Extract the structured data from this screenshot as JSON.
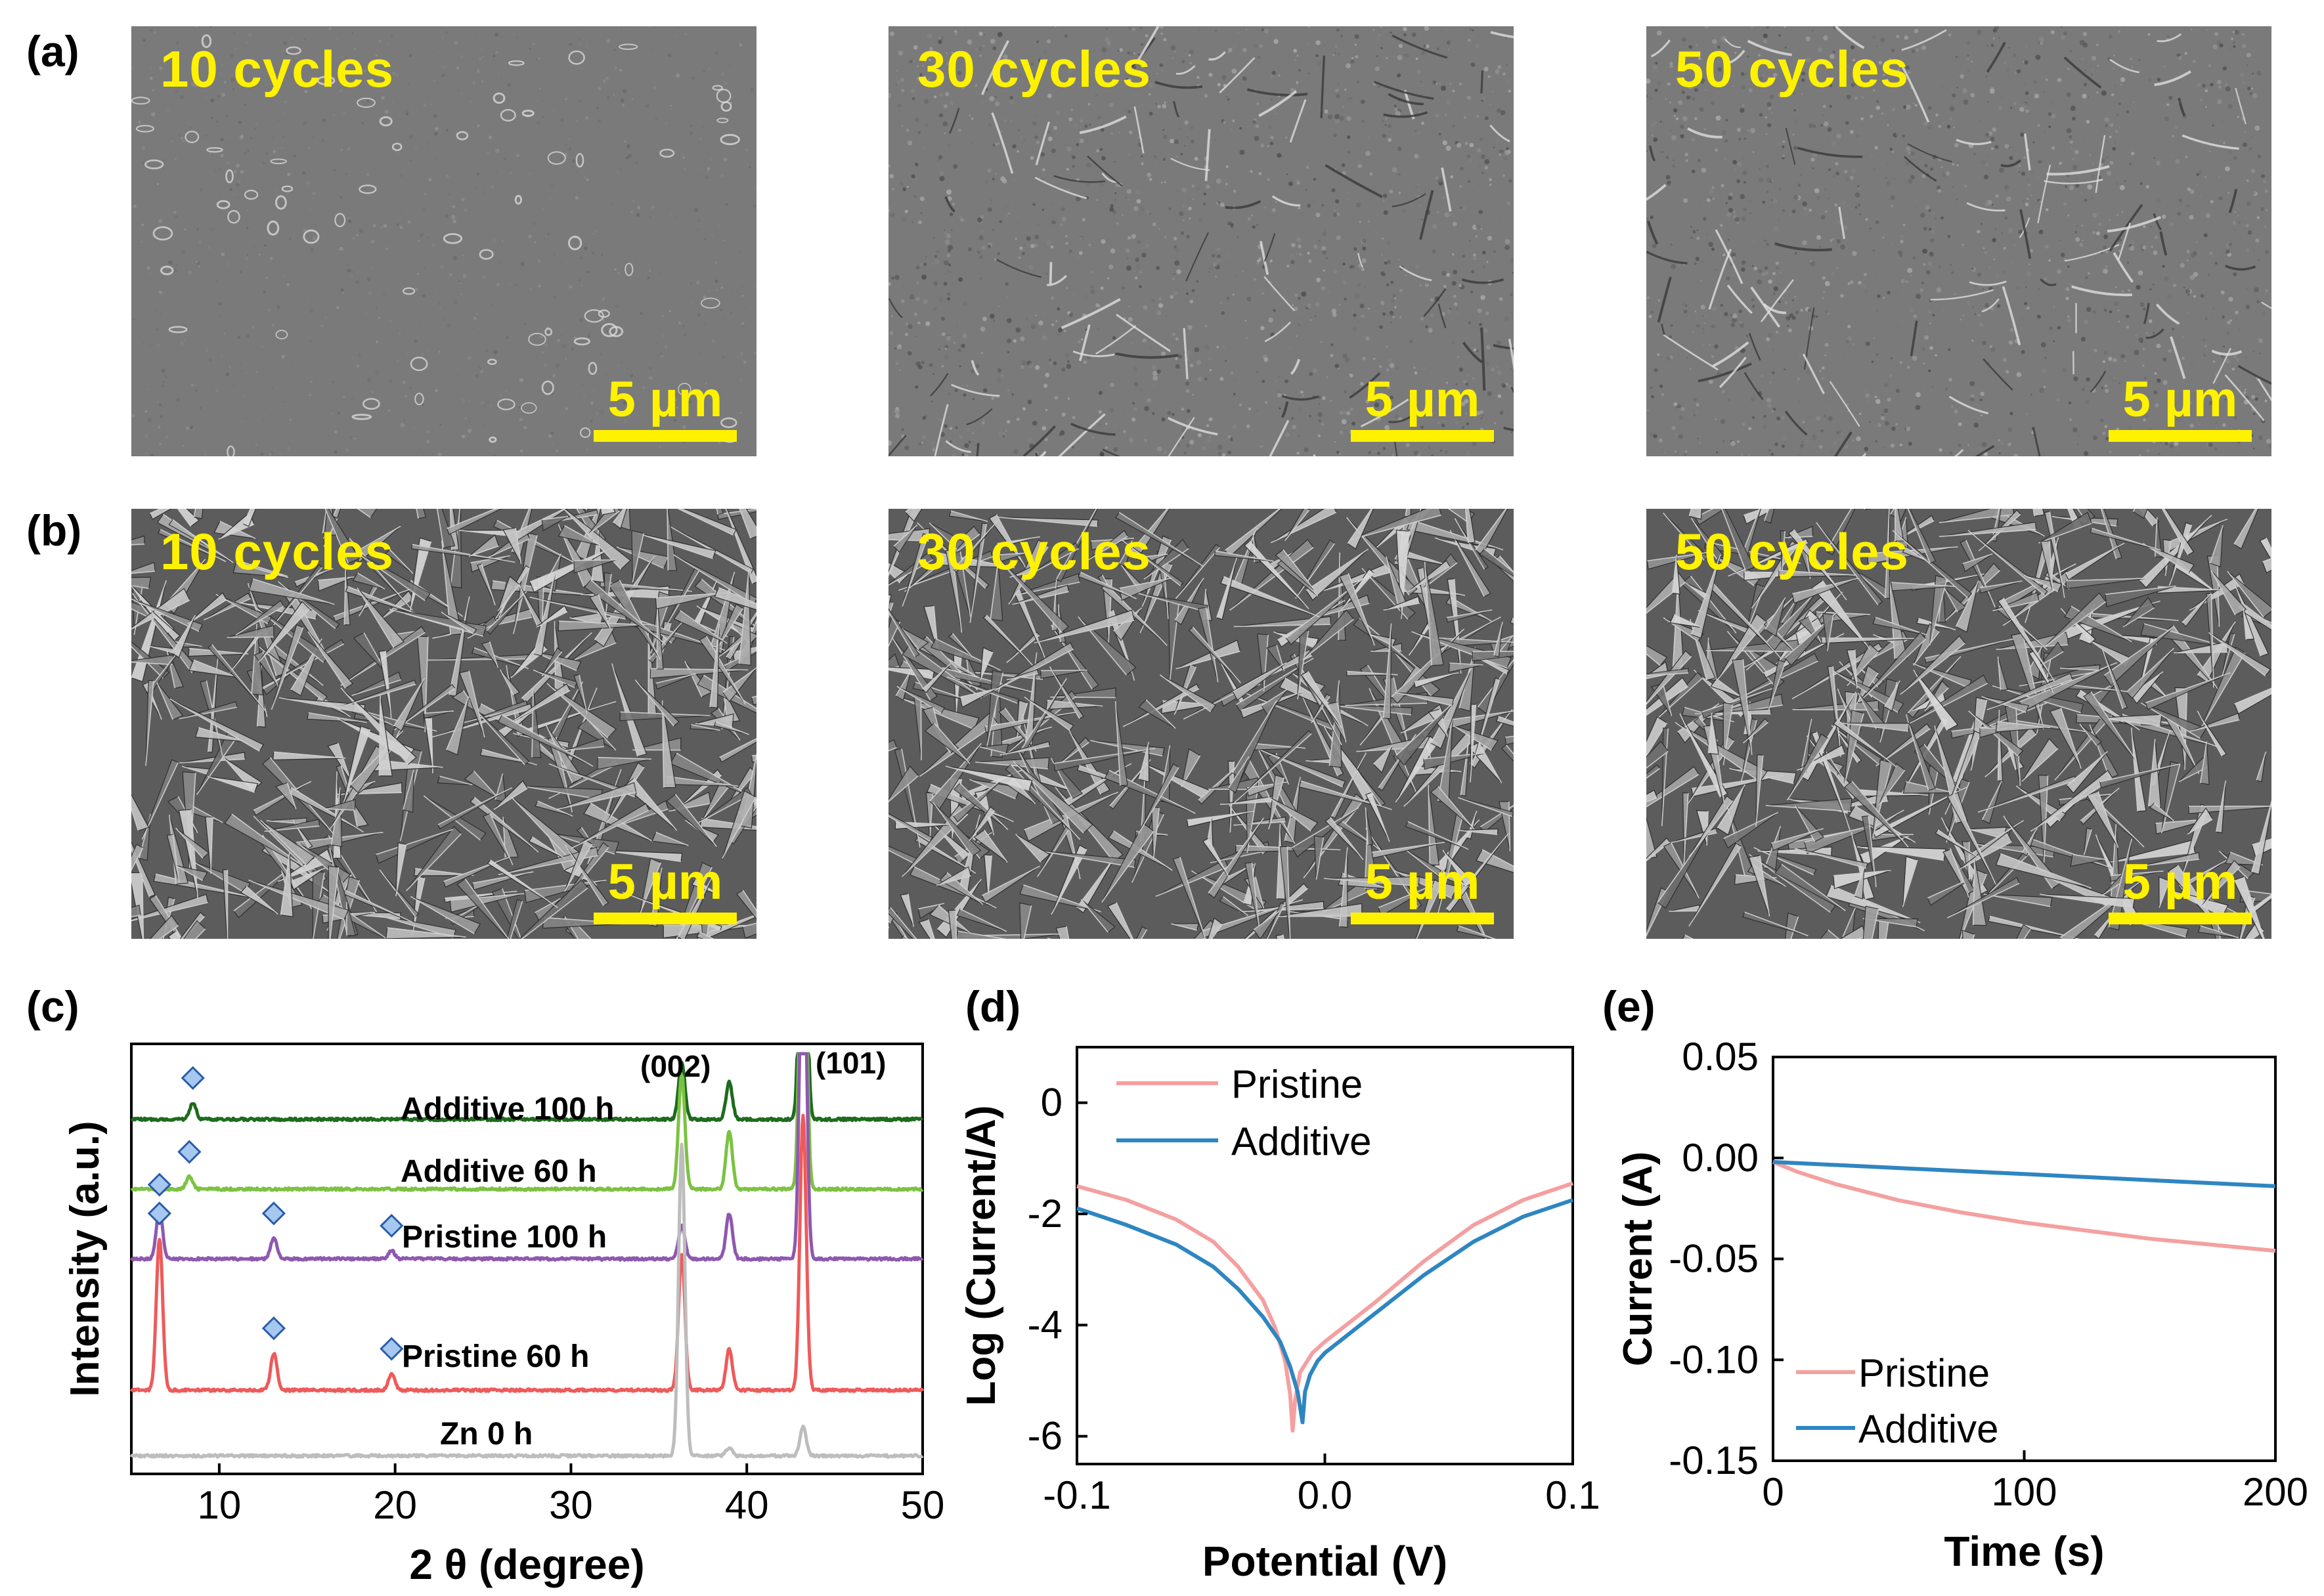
{
  "panels": {
    "a": {
      "letter": "(a)",
      "images": [
        {
          "label": "10 cycles",
          "scale": "5 µm"
        },
        {
          "label": "30 cycles",
          "scale": "5 µm"
        },
        {
          "label": "50 cycles",
          "scale": "5 µm"
        }
      ]
    },
    "b": {
      "letter": "(b)",
      "images": [
        {
          "label": "10 cycles",
          "scale": "5 µm"
        },
        {
          "label": "30 cycles",
          "scale": "5 µm"
        },
        {
          "label": "50 cycles",
          "scale": "5 µm"
        }
      ]
    },
    "c": {
      "letter": "(c)"
    },
    "d": {
      "letter": "(d)"
    },
    "e": {
      "letter": "(e)"
    }
  },
  "colors": {
    "scale_yellow": "#fff200",
    "additive_100h": "#1e6b1e",
    "additive_60h": "#7cc242",
    "pristine_100h": "#8e58b0",
    "pristine_60h": "#ee5a5a",
    "zn_0h": "#bdbdbd",
    "pristine": "#f4a0a0",
    "additive": "#2e86c1",
    "marker": "#a6c8f0"
  },
  "chart_data": [
    {
      "id": "c",
      "type": "line",
      "xlabel": "2 θ (degree)",
      "ylabel": "Intensity (a.u.)",
      "xlim": [
        5,
        50
      ],
      "xticks": [
        10,
        20,
        30,
        40,
        50
      ],
      "peak_labels": [
        {
          "text": "(002)",
          "x": 36.3
        },
        {
          "text": "(101)",
          "x": 43.2
        }
      ],
      "series": [
        {
          "name": "Additive 100 h",
          "baseline": 0.84,
          "peaks": [
            [
              8.5,
              0.04
            ],
            [
              36.3,
              0.14
            ],
            [
              39.0,
              0.09
            ],
            [
              43.2,
              0.98
            ]
          ],
          "markers": [
            8.5
          ]
        },
        {
          "name": "Additive 60 h",
          "baseline": 0.67,
          "peaks": [
            [
              8.3,
              0.03
            ],
            [
              36.3,
              0.28
            ],
            [
              39.0,
              0.14
            ],
            [
              43.2,
              0.98
            ]
          ],
          "markers": [
            8.3
          ]
        },
        {
          "name": "Pristine 100 h",
          "baseline": 0.5,
          "peaks": [
            [
              6.6,
              0.12
            ],
            [
              13.1,
              0.05
            ],
            [
              19.8,
              0.02
            ],
            [
              36.3,
              0.08
            ],
            [
              39.0,
              0.11
            ],
            [
              43.2,
              0.98
            ]
          ],
          "markers": [
            6.6,
            13.1,
            19.8
          ]
        },
        {
          "name": "Pristine 60 h",
          "baseline": 0.18,
          "peaks": [
            [
              6.6,
              0.37
            ],
            [
              13.1,
              0.09
            ],
            [
              19.8,
              0.04
            ],
            [
              36.3,
              0.33
            ],
            [
              39.0,
              0.1
            ],
            [
              43.2,
              0.67
            ]
          ],
          "markers": [
            6.6,
            13.1,
            19.8
          ]
        },
        {
          "name": "Zn 0 h",
          "baseline": 0.02,
          "peaks": [
            [
              36.3,
              0.76
            ],
            [
              39.0,
              0.02
            ],
            [
              43.2,
              0.07
            ]
          ],
          "markers": []
        }
      ]
    },
    {
      "id": "d",
      "type": "line",
      "xlabel": "Potential (V)",
      "ylabel": "Log (Current/A)",
      "xlim": [
        -0.1,
        0.1
      ],
      "ylim": [
        -6.5,
        1
      ],
      "xticks": [
        -0.1,
        0.0,
        0.1
      ],
      "xtick_labels": [
        "-0.1",
        "0.0",
        "0.1"
      ],
      "yticks": [
        0,
        -2,
        -4,
        -6
      ],
      "legend": "top-left",
      "series": [
        {
          "name": "Pristine",
          "x": [
            -0.1,
            -0.08,
            -0.06,
            -0.045,
            -0.035,
            -0.025,
            -0.02,
            -0.016,
            -0.014,
            -0.013,
            -0.012,
            -0.01,
            -0.005,
            0.0,
            0.01,
            0.02,
            0.04,
            0.06,
            0.08,
            0.1
          ],
          "y": [
            -1.5,
            -1.75,
            -2.1,
            -2.5,
            -2.95,
            -3.55,
            -4.05,
            -4.65,
            -5.25,
            -5.9,
            -5.35,
            -4.85,
            -4.5,
            -4.3,
            -3.95,
            -3.6,
            -2.85,
            -2.2,
            -1.75,
            -1.45
          ]
        },
        {
          "name": "Additive",
          "x": [
            -0.1,
            -0.08,
            -0.06,
            -0.045,
            -0.035,
            -0.025,
            -0.018,
            -0.014,
            -0.011,
            -0.009,
            -0.008,
            -0.006,
            -0.003,
            0.0,
            0.01,
            0.02,
            0.04,
            0.06,
            0.08,
            0.1
          ],
          "y": [
            -1.9,
            -2.2,
            -2.55,
            -2.95,
            -3.35,
            -3.85,
            -4.3,
            -4.75,
            -5.2,
            -5.75,
            -5.2,
            -4.9,
            -4.65,
            -4.5,
            -4.15,
            -3.8,
            -3.1,
            -2.5,
            -2.05,
            -1.75
          ]
        }
      ]
    },
    {
      "id": "e",
      "type": "line",
      "xlabel": "Time (s)",
      "ylabel": "Current (A)",
      "xlim": [
        0,
        200
      ],
      "ylim": [
        -0.15,
        0.05
      ],
      "xticks": [
        0,
        100,
        200
      ],
      "yticks": [
        0.05,
        0.0,
        -0.05,
        -0.1,
        -0.15
      ],
      "ytick_labels": [
        "0.05",
        "0.00",
        "-0.05",
        "-0.10",
        "-0.15"
      ],
      "legend": "bottom-left",
      "series": [
        {
          "name": "Pristine",
          "x": [
            0,
            10,
            25,
            50,
            75,
            100,
            125,
            150,
            175,
            200
          ],
          "y": [
            -0.002,
            -0.007,
            -0.013,
            -0.021,
            -0.027,
            -0.032,
            -0.036,
            -0.04,
            -0.043,
            -0.046
          ]
        },
        {
          "name": "Additive",
          "x": [
            0,
            50,
            100,
            150,
            200
          ],
          "y": [
            -0.002,
            -0.005,
            -0.008,
            -0.011,
            -0.014
          ]
        }
      ]
    }
  ]
}
